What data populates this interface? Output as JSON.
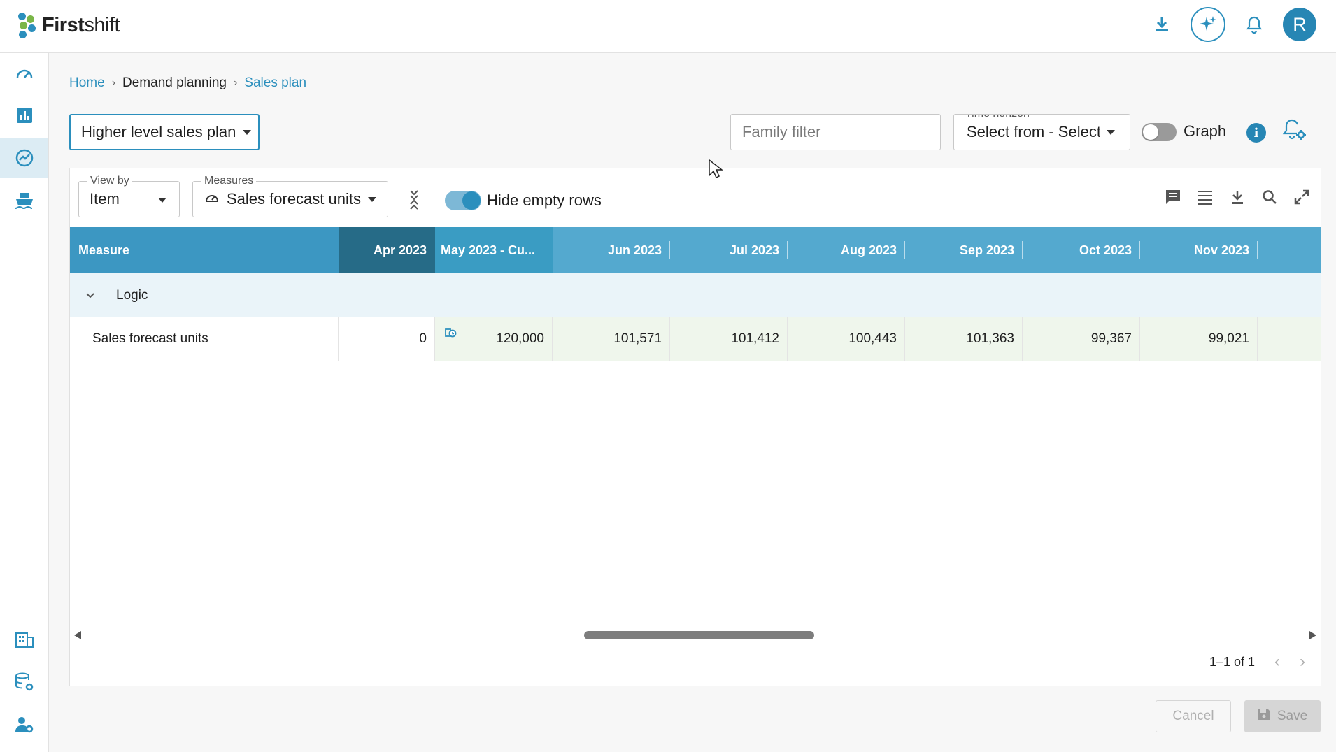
{
  "app": {
    "logo_first": "First",
    "logo_shift": "shift",
    "avatar_initial": "R"
  },
  "breadcrumb": {
    "home": "Home",
    "section": "Demand planning",
    "current": "Sales plan"
  },
  "toolbar": {
    "plan_select": "Higher level sales plan",
    "family_filter_placeholder": "Family filter",
    "time_horizon_label": "Time horizon",
    "time_horizon_value": "Select from - Select",
    "graph_label": "Graph",
    "graph_on": false
  },
  "panel": {
    "view_by_label": "View by",
    "view_by_value": "Item",
    "measures_label": "Measures",
    "measures_value": "Sales forecast units",
    "hide_empty_label": "Hide empty rows",
    "hide_empty_on": true
  },
  "grid": {
    "measure_header": "Measure",
    "columns": [
      "Apr 2023",
      "May 2023 - Cu...",
      "Jun 2023",
      "Jul 2023",
      "Aug 2023",
      "Sep 2023",
      "Oct 2023",
      "Nov 2023"
    ],
    "group": "Logic",
    "rows": [
      {
        "name": "Sales forecast units",
        "values": [
          "0",
          "120,000",
          "101,571",
          "101,412",
          "100,443",
          "101,363",
          "99,367",
          "99,021"
        ]
      }
    ]
  },
  "pager": {
    "text": "1–1 of 1"
  },
  "footer": {
    "cancel": "Cancel",
    "save": "Save"
  },
  "colors": {
    "accent": "#2b8fbd",
    "header": "#54a9cf",
    "current_col": "#266b87",
    "row_tint": "#eff6ec"
  }
}
